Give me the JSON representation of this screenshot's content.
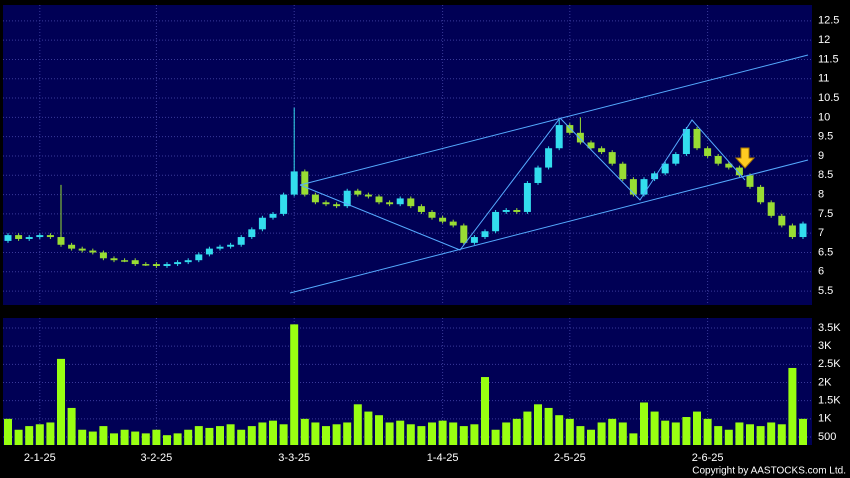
{
  "chart_data": {
    "type": "candlestick",
    "categories": [
      null,
      null,
      null,
      "2-1-25",
      null,
      null,
      null,
      null,
      null,
      null,
      null,
      null,
      null,
      null,
      "3-2-25",
      null,
      null,
      null,
      null,
      null,
      null,
      null,
      null,
      null,
      null,
      null,
      null,
      "3-3-25",
      null,
      null,
      null,
      null,
      null,
      null,
      null,
      null,
      null,
      null,
      null,
      null,
      null,
      "1-4-25",
      null,
      null,
      null,
      null,
      null,
      null,
      null,
      null,
      null,
      null,
      null,
      "2-5-25",
      null,
      null,
      null,
      null,
      null,
      null,
      null,
      null,
      null,
      null,
      null,
      null,
      "2-6-25",
      null,
      null,
      null,
      null,
      null,
      null,
      null,
      null,
      null
    ],
    "open": [
      6.8,
      6.95,
      6.85,
      6.9,
      6.95,
      6.9,
      6.7,
      6.6,
      6.55,
      6.5,
      6.35,
      6.3,
      6.3,
      6.2,
      6.2,
      6.15,
      6.2,
      6.25,
      6.3,
      6.45,
      6.6,
      6.65,
      6.7,
      6.9,
      7.1,
      7.4,
      7.5,
      8.0,
      8.6,
      8.0,
      7.8,
      7.75,
      7.7,
      8.1,
      8.0,
      7.95,
      7.8,
      7.75,
      7.9,
      7.7,
      7.55,
      7.4,
      7.3,
      7.2,
      6.75,
      6.9,
      7.05,
      7.55,
      7.6,
      7.55,
      8.3,
      8.7,
      9.2,
      9.8,
      9.6,
      9.35,
      9.2,
      9.1,
      8.8,
      8.4,
      8.0,
      8.4,
      8.55,
      8.8,
      9.05,
      9.7,
      9.2,
      9.0,
      8.8,
      8.7,
      8.5,
      8.2,
      7.8,
      7.45,
      7.2,
      6.9
    ],
    "high": [
      7.0,
      7.0,
      6.95,
      7.0,
      7.0,
      8.25,
      6.75,
      6.65,
      6.6,
      6.55,
      6.4,
      6.35,
      6.35,
      6.25,
      6.25,
      6.25,
      6.3,
      6.35,
      6.5,
      6.65,
      6.7,
      6.75,
      6.95,
      7.15,
      7.45,
      7.55,
      8.05,
      10.25,
      8.65,
      8.05,
      7.85,
      7.8,
      8.15,
      8.15,
      8.05,
      8.0,
      7.85,
      7.95,
      7.95,
      7.75,
      7.6,
      7.45,
      7.35,
      7.25,
      6.95,
      7.1,
      7.6,
      7.65,
      7.65,
      8.35,
      8.75,
      9.25,
      9.95,
      9.85,
      10.0,
      9.4,
      9.25,
      9.15,
      8.85,
      8.45,
      8.45,
      8.6,
      8.85,
      9.1,
      9.75,
      9.75,
      9.25,
      9.05,
      8.85,
      8.75,
      8.55,
      8.25,
      7.85,
      7.5,
      7.25,
      7.3
    ],
    "low": [
      6.75,
      6.8,
      6.8,
      6.85,
      6.85,
      6.65,
      6.55,
      6.5,
      6.45,
      6.3,
      6.25,
      6.25,
      6.15,
      6.15,
      6.1,
      6.1,
      6.15,
      6.2,
      6.25,
      6.4,
      6.55,
      6.6,
      6.65,
      6.85,
      7.05,
      7.35,
      7.45,
      7.95,
      7.95,
      7.75,
      7.7,
      7.65,
      7.65,
      7.95,
      7.9,
      7.75,
      7.7,
      7.7,
      7.65,
      7.5,
      7.35,
      7.25,
      7.15,
      6.7,
      6.7,
      6.85,
      7.0,
      7.5,
      7.5,
      7.5,
      8.25,
      8.65,
      9.15,
      9.55,
      9.3,
      9.15,
      9.05,
      8.75,
      8.35,
      7.95,
      7.95,
      8.35,
      8.5,
      8.75,
      9.0,
      9.15,
      8.95,
      8.75,
      8.65,
      8.45,
      8.15,
      7.75,
      7.4,
      7.15,
      6.85,
      6.85
    ],
    "close": [
      6.95,
      6.85,
      6.9,
      6.95,
      6.9,
      6.7,
      6.6,
      6.55,
      6.5,
      6.35,
      6.3,
      6.3,
      6.2,
      6.2,
      6.15,
      6.2,
      6.25,
      6.3,
      6.45,
      6.6,
      6.65,
      6.7,
      6.9,
      7.1,
      7.4,
      7.5,
      8.0,
      8.6,
      8.0,
      7.8,
      7.75,
      7.7,
      8.1,
      8.0,
      7.95,
      7.8,
      7.75,
      7.9,
      7.7,
      7.55,
      7.4,
      7.3,
      7.2,
      6.75,
      6.9,
      7.05,
      7.55,
      7.6,
      7.55,
      8.3,
      8.7,
      9.2,
      9.8,
      9.6,
      9.35,
      9.2,
      9.1,
      8.8,
      8.4,
      8.0,
      8.4,
      8.55,
      8.8,
      9.05,
      9.7,
      9.2,
      9.0,
      8.8,
      8.7,
      8.5,
      8.2,
      7.8,
      7.45,
      7.2,
      6.9,
      7.25
    ],
    "volume": [
      1000,
      700,
      800,
      850,
      900,
      2650,
      1300,
      700,
      650,
      800,
      600,
      700,
      650,
      600,
      700,
      550,
      600,
      700,
      800,
      750,
      800,
      850,
      700,
      800,
      900,
      950,
      850,
      3600,
      1000,
      900,
      800,
      850,
      900,
      1400,
      1200,
      1100,
      900,
      950,
      850,
      800,
      900,
      950,
      900,
      800,
      850,
      2150,
      700,
      900,
      1000,
      1200,
      1400,
      1300,
      1100,
      1000,
      800,
      700,
      900,
      1000,
      900,
      600,
      1450,
      1200,
      950,
      900,
      1050,
      1200,
      1000,
      800,
      700,
      900,
      850,
      800,
      900,
      850,
      2400,
      1000
    ],
    "up_color": "#33ddee",
    "down_color": "#99dd33",
    "volume_color": "#99ff11",
    "ylim": [
      5.14,
      12.91
    ],
    "yticks": [
      5.5,
      6,
      6.5,
      7,
      7.5,
      8,
      8.5,
      9,
      9.5,
      10,
      10.5,
      11,
      11.5,
      12,
      12.5
    ],
    "volume_ylim": [
      280,
      3775
    ],
    "volume_ticks": [
      500,
      {
        "value": 1000,
        "label": "1K"
      },
      {
        "value": 1500,
        "label": "1.5K"
      },
      {
        "value": 2000,
        "label": "2K"
      },
      {
        "value": 2500,
        "label": "2.5K"
      },
      {
        "value": 3000,
        "label": "3K"
      },
      {
        "value": 3500,
        "label": "3.5K"
      }
    ],
    "grid": true,
    "copyright": "Copyright by AASTOCKS.com Ltd."
  }
}
